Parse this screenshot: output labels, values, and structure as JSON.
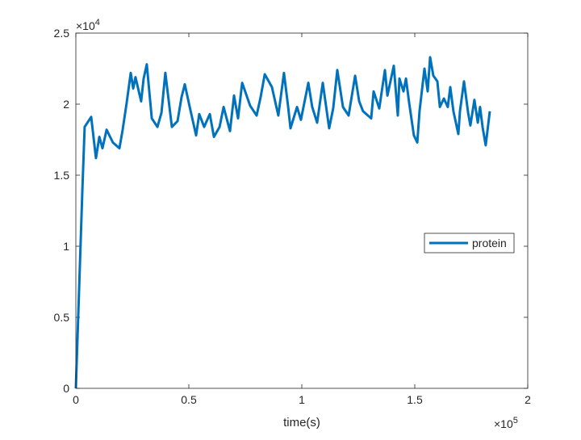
{
  "chart_data": {
    "type": "line",
    "title": "",
    "xlabel": "time(s)",
    "ylabel": "",
    "xlim": [
      0,
      200000
    ],
    "ylim": [
      0,
      25000
    ],
    "x_exponent_label": "×10",
    "x_exponent": "5",
    "y_exponent_label": "×10",
    "y_exponent": "4",
    "xticks": [
      0,
      50000,
      100000,
      150000,
      200000
    ],
    "xtick_labels": [
      "0",
      "0.5",
      "1",
      "1.5",
      "2"
    ],
    "yticks": [
      0,
      5000,
      10000,
      15000,
      20000,
      25000
    ],
    "ytick_labels": [
      "0",
      "0.5",
      "1",
      "1.5",
      "2",
      "2.5"
    ],
    "grid": false,
    "box": true,
    "legend_position": "right",
    "series": [
      {
        "name": "protein",
        "color": "#0072BD",
        "x": [
          0,
          2900,
          3900,
          6800,
          8900,
          10400,
          11800,
          13600,
          16400,
          19300,
          20700,
          22500,
          24300,
          25400,
          26400,
          28900,
          30000,
          31400,
          33600,
          36100,
          37900,
          39600,
          42500,
          45000,
          46800,
          48200,
          50400,
          53200,
          54600,
          56800,
          59300,
          61100,
          63600,
          65400,
          68200,
          70000,
          71800,
          73600,
          77100,
          80000,
          81800,
          83600,
          86800,
          89600,
          92100,
          93900,
          95000,
          97900,
          99600,
          102900,
          104600,
          106800,
          109300,
          112100,
          113900,
          115700,
          118200,
          120700,
          123600,
          125400,
          127100,
          130700,
          131800,
          134300,
          136800,
          137900,
          140700,
          142500,
          143200,
          145000,
          146100,
          147500,
          149600,
          151100,
          152100,
          154300,
          155700,
          156800,
          158200,
          160000,
          161100,
          162900,
          164600,
          165700,
          167100,
          169300,
          170000,
          171800,
          173600,
          174600,
          176400,
          177900,
          178900,
          180000,
          181400,
          183200
        ],
        "y": [
          0,
          14000,
          18400,
          19100,
          16200,
          17700,
          16900,
          18200,
          17300,
          16900,
          18200,
          20100,
          22200,
          21100,
          21900,
          20200,
          21800,
          22800,
          19000,
          18400,
          19400,
          22200,
          18400,
          18800,
          20500,
          21400,
          19800,
          17800,
          19300,
          18400,
          19300,
          17700,
          18400,
          19800,
          18100,
          20600,
          19000,
          21500,
          19900,
          19200,
          20500,
          22100,
          21200,
          19200,
          22200,
          19900,
          18300,
          19800,
          18900,
          21500,
          19800,
          18700,
          21500,
          18300,
          19700,
          22400,
          19800,
          19200,
          22000,
          20200,
          19500,
          19000,
          20900,
          19700,
          22400,
          20600,
          22700,
          19200,
          21800,
          20900,
          21800,
          20100,
          17800,
          17300,
          19500,
          22500,
          20900,
          23300,
          22000,
          21600,
          19800,
          20400,
          19800,
          21200,
          19500,
          17900,
          19500,
          21600,
          19400,
          18500,
          20300,
          18700,
          19800,
          18400,
          17100,
          19500
        ]
      }
    ]
  }
}
